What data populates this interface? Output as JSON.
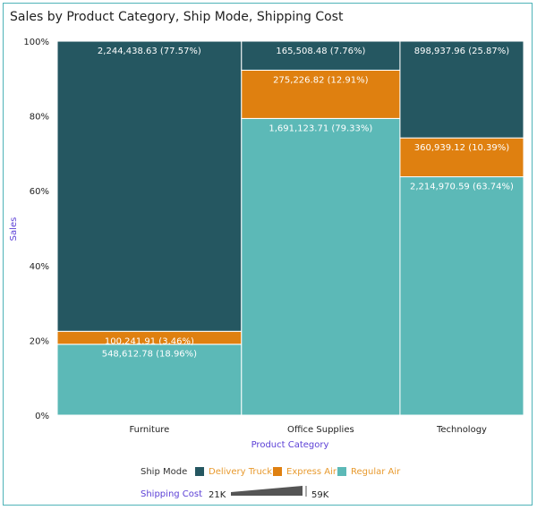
{
  "chart_data": {
    "type": "bar",
    "subtype": "marimekko-stacked-100",
    "title": "Sales by Product Category, Ship Mode, Shipping Cost",
    "xlabel": "Product Category",
    "ylabel": "Sales",
    "ylim": [
      0,
      100
    ],
    "yticks": [
      "0%",
      "20%",
      "40%",
      "60%",
      "80%",
      "100%"
    ],
    "categories": [
      "Furniture",
      "Office Supplies",
      "Technology"
    ],
    "category_width_share": [
      0.474,
      0.408,
      0.318
    ],
    "series": [
      {
        "name": "Regular Air",
        "color": "#5cb9b7",
        "values": [
          548612.78,
          1691123.71,
          2214970.59
        ],
        "percents": [
          18.96,
          79.33,
          63.74
        ],
        "labels": [
          "548,612.78 (18.96%)",
          "1,691,123.71 (79.33%)",
          "2,214,970.59 (63.74%)"
        ]
      },
      {
        "name": "Express Air",
        "color": "#df8010",
        "values": [
          100241.91,
          275226.82,
          360939.12
        ],
        "percents": [
          3.46,
          12.91,
          10.39
        ],
        "labels": [
          "100,241.91 (3.46%)",
          "275,226.82 (12.91%)",
          "360,939.12 (10.39%)"
        ]
      },
      {
        "name": "Delivery Truck",
        "color": "#255761",
        "values": [
          2244438.63,
          165508.48,
          898937.96
        ],
        "percents": [
          77.57,
          7.76,
          25.87
        ],
        "labels": [
          "2,244,438.63 (77.57%)",
          "165,508.48 (7.76%)",
          "898,937.96 (25.87%)"
        ]
      }
    ],
    "grid": false,
    "legend": {
      "title": "Ship Mode",
      "placement": "bottom",
      "items": [
        "Delivery Truck",
        "Express Air",
        "Regular Air"
      ],
      "size_title": "Shipping Cost",
      "size_min": "21K",
      "size_max": "59K"
    }
  }
}
